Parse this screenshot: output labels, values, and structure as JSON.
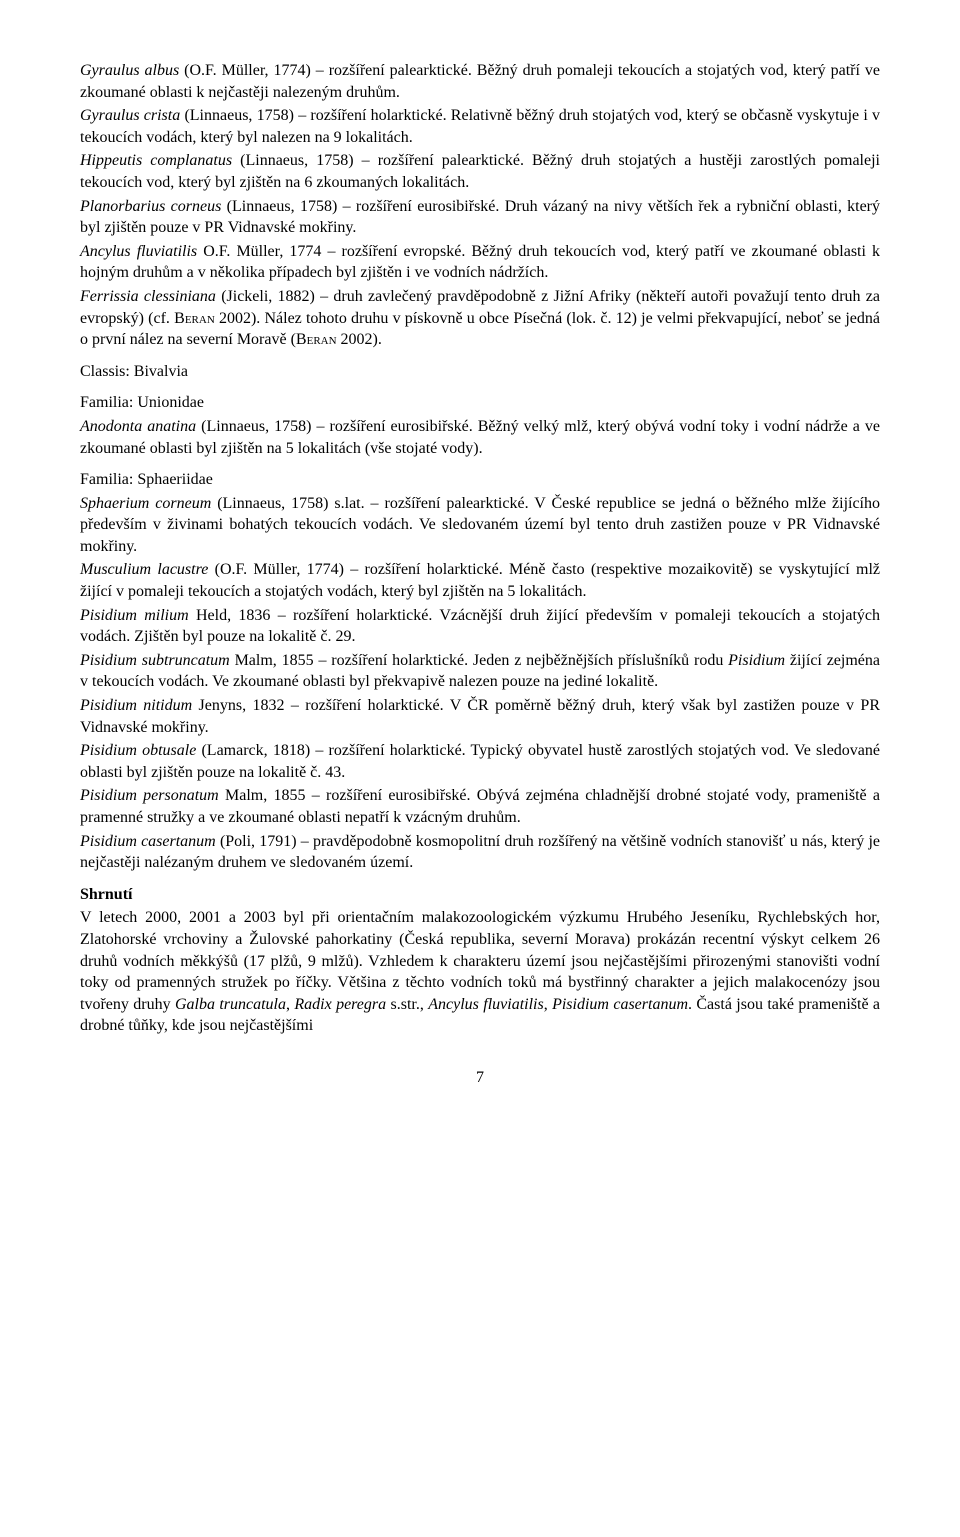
{
  "paragraphs": {
    "p1a": "Gyraulus albus",
    "p1b": " (O.F. Müller, 1774) – rozšíření palearktické. Běžný druh pomaleji tekoucích a stojatých vod, který patří ve zkoumané oblasti k nejčastěji nalezeným druhům.",
    "p2a": "Gyraulus crista",
    "p2b": " (Linnaeus, 1758) – rozšíření holarktické. Relativně běžný druh stojatých vod, který se občasně vyskytuje i v tekoucích vodách, který byl nalezen na 9 lokalitách.",
    "p3a": "Hippeutis complanatus",
    "p3b": " (Linnaeus, 1758) – rozšíření palearktické. Běžný druh stojatých a hustěji zarostlých pomaleji tekoucích vod, který byl zjištěn na 6 zkoumaných lokalitách.",
    "p4a": "Planorbarius corneus",
    "p4b": " (Linnaeus, 1758) – rozšíření eurosibiřské. Druh vázaný na nivy větších řek a rybniční oblasti, který byl zjištěn pouze v PR Vidnavské mokřiny.",
    "p5a": "Ancylus fluviatilis",
    "p5b": " O.F. Müller, 1774 – rozšíření evropské. Běžný druh tekoucích vod, který patří ve zkoumané oblasti k hojným druhům a v několika případech byl zjištěn i ve vodních nádržích.",
    "p6a": "Ferrissia clessiniana",
    "p6b": " (Jickeli, 1882) – druh zavlečený pravděpodobně z Jižní Afriky (někteří autoři považují tento druh za evropský) (cf. ",
    "p6c": "Beran",
    "p6d": " 2002). Nález tohoto druhu v pískovně u obce Písečná (lok. č. 12) je velmi překvapující, neboť se jedná o první nález na severní Moravě (",
    "p6e": "Beran",
    "p6f": " 2002).",
    "classis": "Classis: Bivalvia",
    "fam1": "Familia: Unionidae",
    "p7a": "Anodonta anatina",
    "p7b": " (Linnaeus, 1758) – rozšíření eurosibiřské. Běžný velký mlž, který obývá vodní toky i vodní nádrže a ve zkoumané oblasti byl zjištěn na 5 lokalitách (vše stojaté vody).",
    "fam2": "Familia: Sphaeriidae",
    "p8a": "Sphaerium corneum",
    "p8b": " (Linnaeus, 1758) s.lat. – rozšíření palearktické. V České republice se jedná o běžného mlže žijícího především v živinami bohatých tekoucích vodách. Ve sledovaném území byl tento druh zastižen pouze v PR Vidnavské mokřiny.",
    "p9a": "Musculium lacustre",
    "p9b": " (O.F. Müller, 1774) – rozšíření holarktické. Méně často (respektive mozaikovitě) se vyskytující mlž žijící v pomaleji tekoucích a stojatých vodách, který byl zjištěn na 5 lokalitách.",
    "p10a": "Pisidium milium",
    "p10b": " Held, 1836 – rozšíření holarktické. Vzácnější druh žijící především v pomaleji tekoucích a stojatých vodách. Zjištěn byl pouze na lokalitě č. 29.",
    "p11a": "Pisidium subtruncatum",
    "p11b": " Malm, 1855 – rozšíření holarktické. Jeden z nejběžnějších příslušníků rodu ",
    "p11c": "Pisidium",
    "p11d": " žijící zejména v tekoucích vodách. Ve zkoumané oblasti byl překvapivě nalezen pouze na jediné lokalitě.",
    "p12a": "Pisidium nitidum",
    "p12b": " Jenyns, 1832 – rozšíření holarktické. V ČR poměrně běžný druh, který však byl zastižen pouze v PR Vidnavské mokřiny.",
    "p13a": "Pisidium obtusale",
    "p13b": " (Lamarck, 1818) – rozšíření holarktické. Typický obyvatel hustě zarostlých stojatých vod. Ve sledované oblasti byl zjištěn pouze na lokalitě č. 43.",
    "p14a": "Pisidium personatum",
    "p14b": " Malm, 1855 – rozšíření eurosibiřské. Obývá zejména chladnější drobné stojaté vody, prameniště a pramenné stružky a ve zkoumané oblasti nepatří k vzácným druhům.",
    "p15a": "Pisidium casertanum",
    "p15b": " (Poli, 1791) – pravděpodobně kosmopolitní druh rozšířený na většině vodních stanovišť u nás, který je nejčastěji nalézaným druhem ve sledovaném území.",
    "summary_title": "Shrnutí",
    "summary1": "V letech 2000, 2001 a 2003 byl při orientačním malakozoologickém výzkumu Hrubého Jeseníku, Rychlebských hor, Zlatohorské vrchoviny a Žulovské pahorkatiny (Česká republika, severní Morava) prokázán recentní výskyt celkem 26 druhů vodních měkkýšů (17 plžů, 9 mlžů). Vzhledem k charakteru území jsou nejčastějšími přirozenými stanovišti vodní toky od pramenných stružek po říčky. Většina z těchto vodních toků má bystřinný charakter a jejich malakocenózy jsou tvořeny druhy ",
    "summary2": "Galba truncatula",
    "summary3": ", ",
    "summary4": "Radix peregra",
    "summary5": " s.str., ",
    "summary6": "Ancylus fluviatilis",
    "summary7": ", ",
    "summary8": "Pisidium casertanum",
    "summary9": ". Častá jsou také prameniště a drobné tůňky, kde jsou nejčastějšími",
    "page": "7"
  }
}
